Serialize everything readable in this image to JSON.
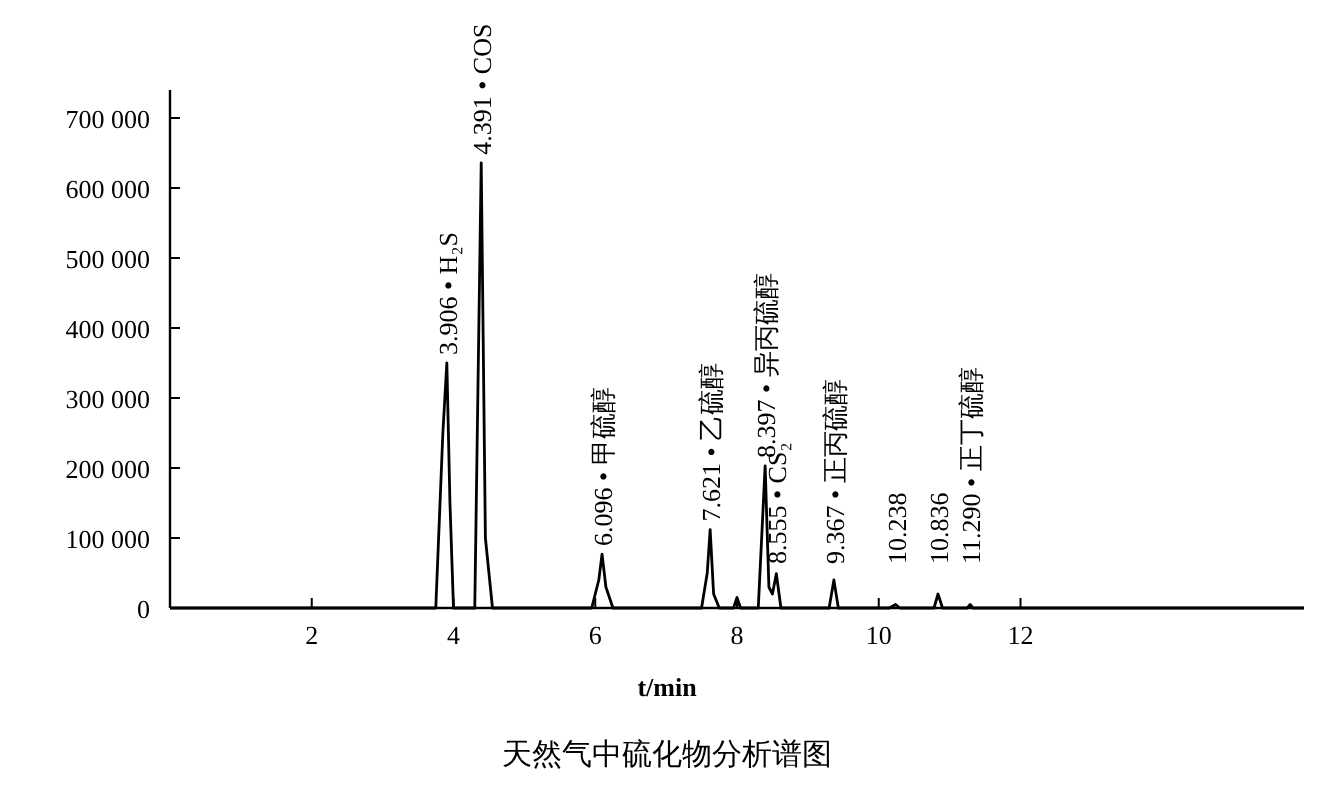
{
  "chart_data": {
    "type": "line",
    "title": "天然气中硫化物分析谱图",
    "xlabel": "t/min",
    "color": "#000000",
    "x": [
      0,
      3.75,
      3.85,
      3.906,
      3.95,
      4.0,
      4.3,
      4.391,
      4.45,
      4.55,
      5.95,
      6.05,
      6.096,
      6.15,
      6.25,
      7.5,
      7.58,
      7.621,
      7.67,
      7.75,
      7.95,
      8.0,
      8.05,
      8.3,
      8.397,
      8.45,
      8.5,
      8.555,
      8.62,
      9.3,
      9.367,
      9.43,
      10.15,
      10.238,
      10.3,
      10.78,
      10.836,
      10.9,
      11.25,
      11.29,
      11.33,
      16
    ],
    "values": [
      0,
      0,
      250000,
      350000,
      150000,
      0,
      0,
      636000,
      100000,
      0,
      0,
      40000,
      77000,
      30000,
      0,
      0,
      50000,
      112000,
      20000,
      0,
      0,
      15000,
      0,
      0,
      203000,
      30000,
      20000,
      49000,
      0,
      0,
      40000,
      0,
      0,
      5000,
      0,
      0,
      20000,
      0,
      0,
      5000,
      0,
      0
    ],
    "xlim": [
      0,
      16
    ],
    "xticks": [
      2,
      4,
      6,
      8,
      10,
      12
    ],
    "ylim": [
      0,
      740000
    ],
    "yticks": [
      {
        "value": 0,
        "label": "0"
      },
      {
        "value": 100000,
        "label": "100 000"
      },
      {
        "value": 200000,
        "label": "200 000"
      },
      {
        "value": 300000,
        "label": "300 000"
      },
      {
        "value": 400000,
        "label": "400 000"
      },
      {
        "value": 500000,
        "label": "500 000"
      },
      {
        "value": 600000,
        "label": "600 000"
      },
      {
        "value": 700000,
        "label": "700 000"
      }
    ],
    "grid": false,
    "marker": "none",
    "line_style": "solid",
    "annotations": [
      {
        "text": "3.906 • H₂S",
        "x": 3.906,
        "y": 350000
      },
      {
        "text": "4.391 • COS",
        "x": 4.391,
        "y": 636000
      },
      {
        "text": "6.096 • 甲硫醇",
        "x": 6.096,
        "y": 77000
      },
      {
        "text": "7.621 • 乙硫醇",
        "x": 7.621,
        "y": 112000
      },
      {
        "text": "8.397 • 异丙硫醇",
        "x": 8.397,
        "y": 203000
      },
      {
        "text": "8.555 • CS₂",
        "x": 8.555,
        "y": 49000
      },
      {
        "text": "9.367 • 正丙硫醇",
        "x": 9.367,
        "y": 40000
      },
      {
        "text": "10.238",
        "x": 10.238,
        "y": 5000
      },
      {
        "text": "10.836",
        "x": 10.836,
        "y": 20000
      },
      {
        "text": "11.290 • 正丁硫醇",
        "x": 11.29,
        "y": 5000
      }
    ]
  }
}
